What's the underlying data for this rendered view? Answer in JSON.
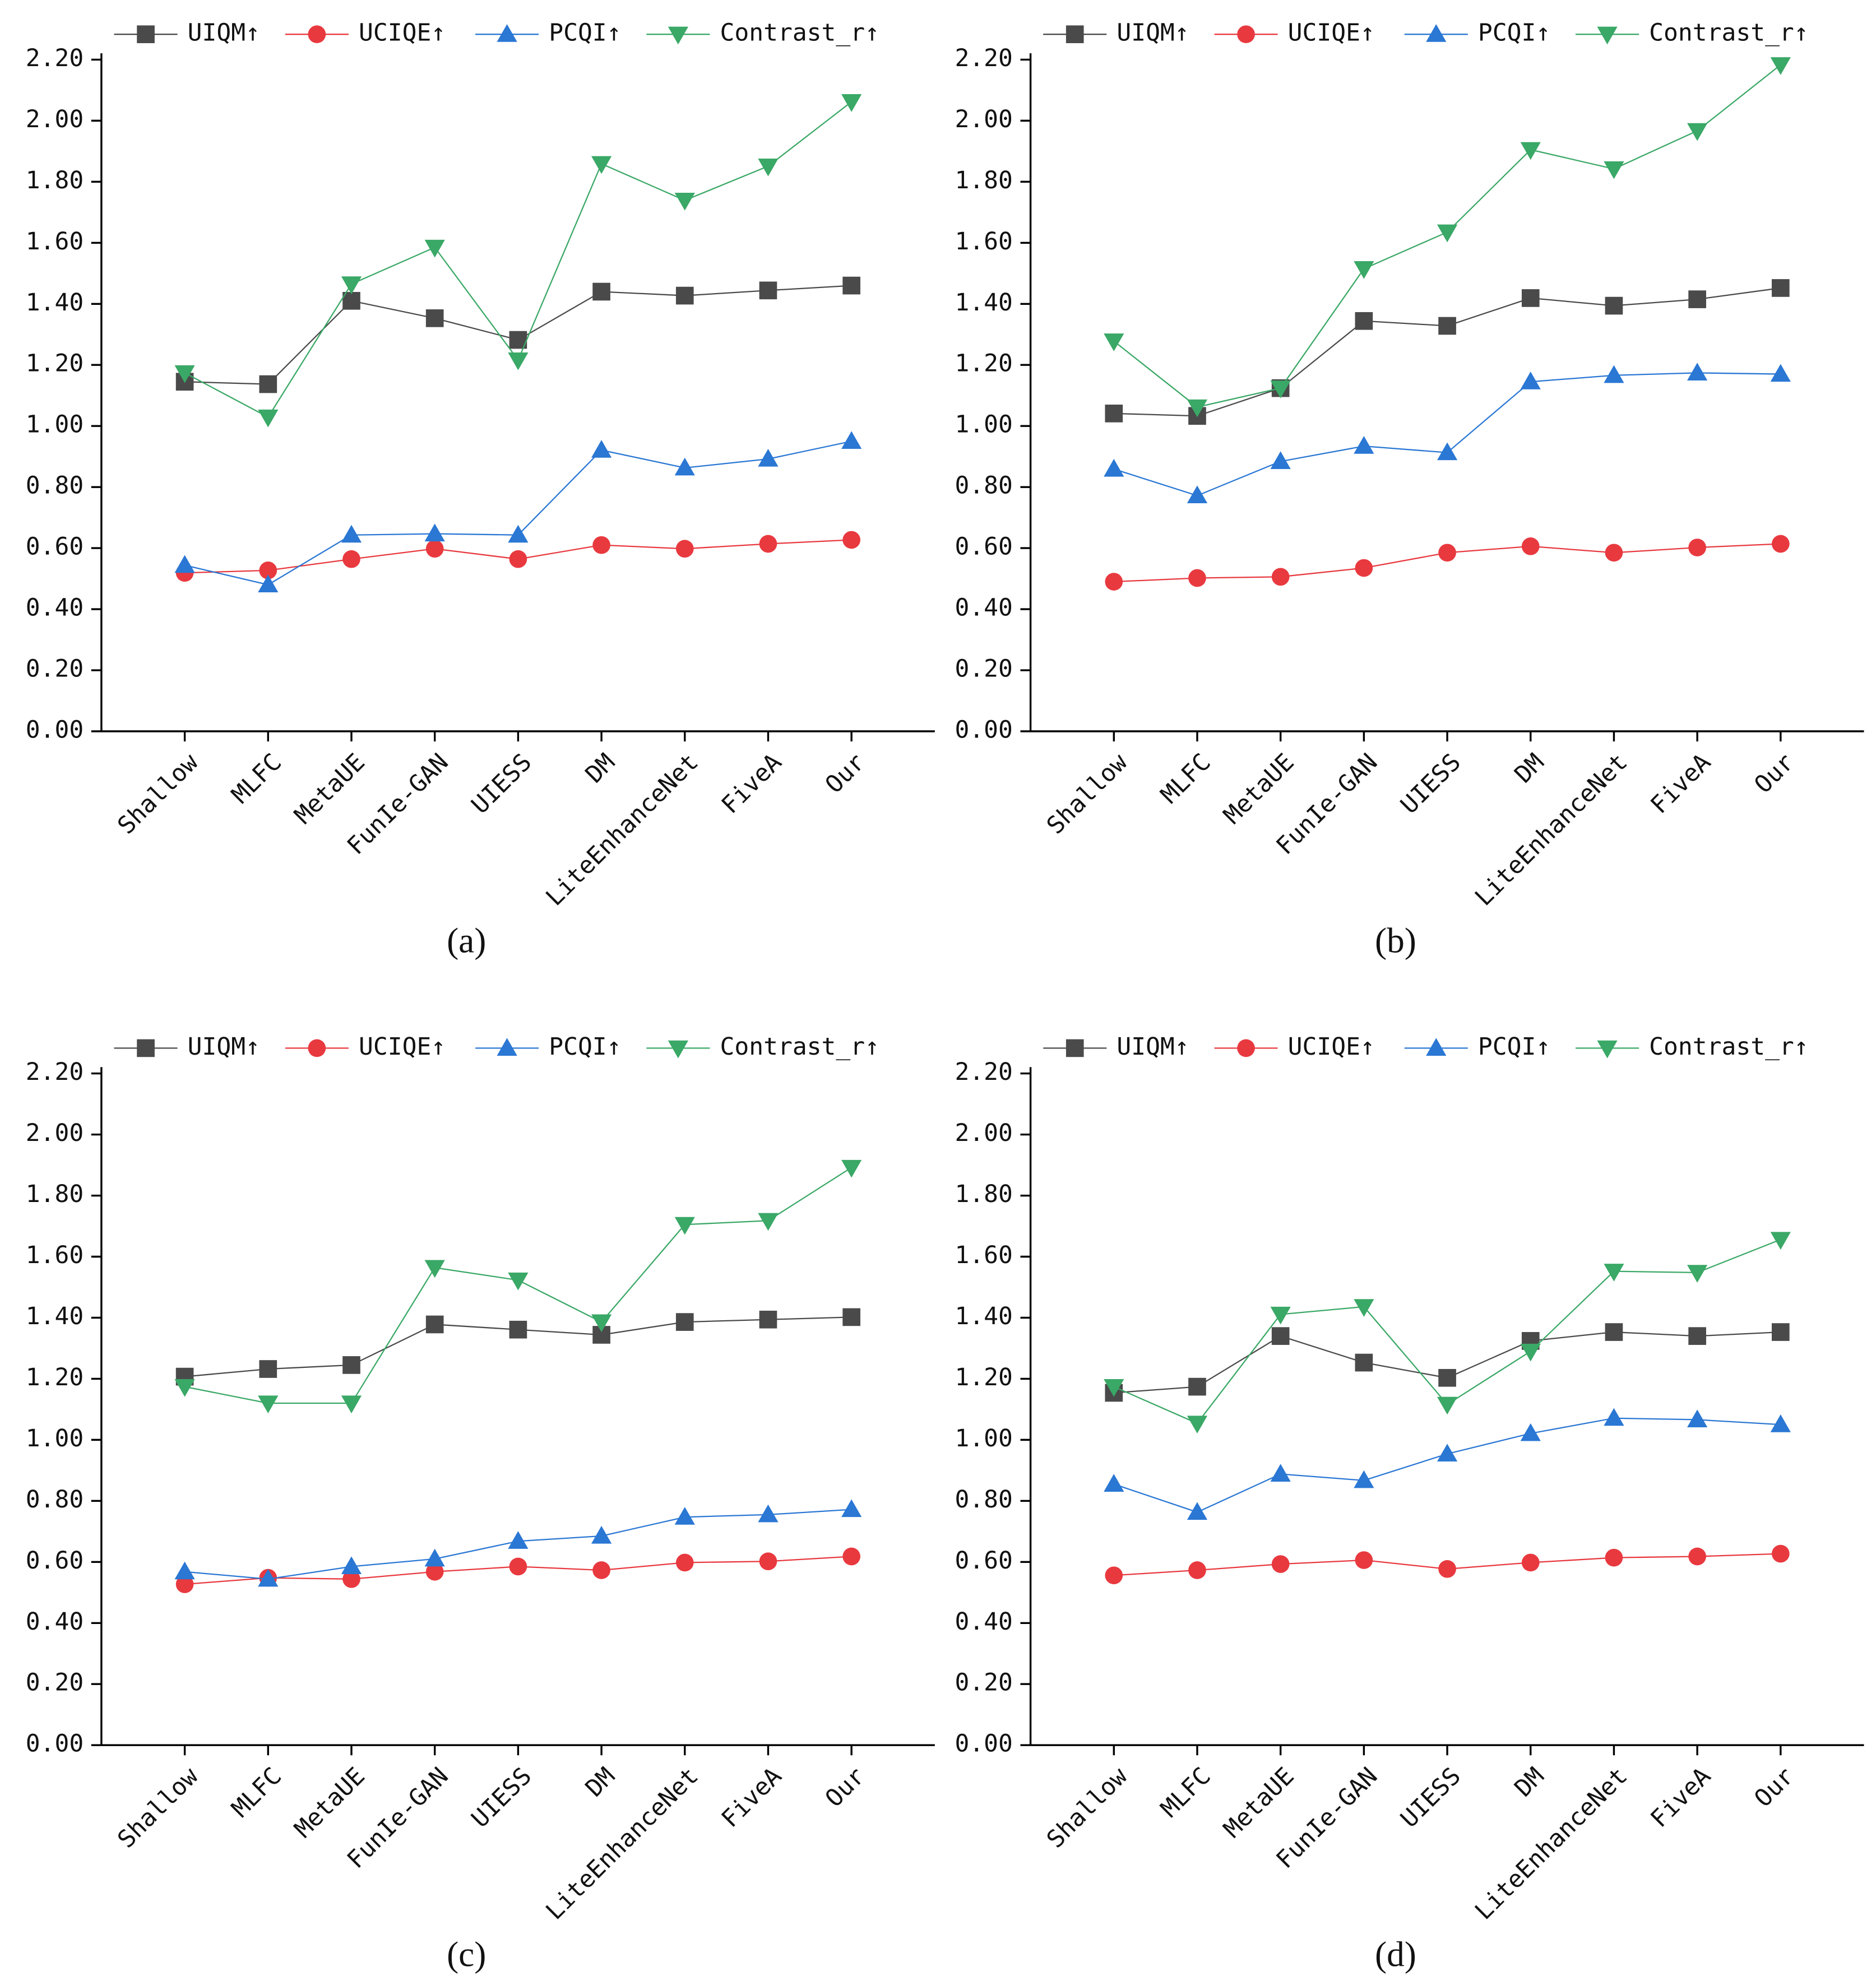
{
  "chart_data": [
    {
      "type": "line",
      "label": "(a)",
      "legend": "top",
      "categories": [
        "Shallow",
        "MLFC",
        "MetaUE",
        "FunIe-GAN",
        "UIESS",
        "DM",
        "LiteEnhanceNet",
        "FiveA",
        "Our"
      ],
      "ylim": [
        0,
        2.2
      ],
      "yticks": [
        {
          "value": 0,
          "label": "0.00"
        },
        {
          "value": 0.2,
          "label": "0.20"
        },
        {
          "value": 0.4,
          "label": "0.40"
        },
        {
          "value": 0.6,
          "label": "0.60"
        },
        {
          "value": 0.8,
          "label": "0.80"
        },
        {
          "value": 1,
          "label": "1.00"
        },
        {
          "value": 1.2,
          "label": "1.20"
        },
        {
          "value": 1.4,
          "label": "1.40"
        },
        {
          "value": 1.6,
          "label": "1.60"
        },
        {
          "value": 1.8,
          "label": "1.80"
        },
        {
          "value": 2,
          "label": "2.00"
        },
        {
          "value": 2.2,
          "label": "2.20"
        }
      ],
      "series": [
        {
          "name": "UIQM↑",
          "color": "#4a4a4a",
          "marker": "square",
          "values": [
            1.145,
            1.137,
            1.41,
            1.353,
            1.282,
            1.44,
            1.427,
            1.444,
            1.46
          ]
        },
        {
          "name": "UCIQE↑",
          "color": "#e8393f",
          "marker": "circle",
          "values": [
            0.519,
            0.527,
            0.564,
            0.598,
            0.564,
            0.61,
            0.598,
            0.614,
            0.627
          ]
        },
        {
          "name": "PCQI↑",
          "color": "#2a77d4",
          "marker": "triangle-up",
          "values": [
            0.544,
            0.48,
            0.643,
            0.647,
            0.643,
            0.921,
            0.863,
            0.892,
            0.95
          ]
        },
        {
          "name": "Contrast_r↑",
          "color": "#3aa866",
          "marker": "triangle-down",
          "values": [
            1.174,
            1.029,
            1.465,
            1.585,
            1.216,
            1.859,
            1.739,
            1.851,
            2.062
          ]
        }
      ]
    },
    {
      "type": "line",
      "label": "(b)",
      "legend": "top",
      "categories": [
        "Shallow",
        "MLFC",
        "MetaUE",
        "FunIe-GAN",
        "UIESS",
        "DM",
        "LiteEnhanceNet",
        "FiveA",
        "Our"
      ],
      "ylim": [
        0,
        2.2
      ],
      "yticks": [
        {
          "value": 0,
          "label": "0.00"
        },
        {
          "value": 0.2,
          "label": "0.20"
        },
        {
          "value": 0.4,
          "label": "0.40"
        },
        {
          "value": 0.6,
          "label": "0.60"
        },
        {
          "value": 0.8,
          "label": "0.80"
        },
        {
          "value": 1,
          "label": "1.00"
        },
        {
          "value": 1.2,
          "label": "1.20"
        },
        {
          "value": 1.4,
          "label": "1.40"
        },
        {
          "value": 1.6,
          "label": "1.60"
        },
        {
          "value": 1.8,
          "label": "1.80"
        },
        {
          "value": 2,
          "label": "2.00"
        },
        {
          "value": 2.2,
          "label": "2.20"
        }
      ],
      "series": [
        {
          "name": "UIQM↑",
          "color": "#4a4a4a",
          "marker": "square",
          "values": [
            1.041,
            1.033,
            1.124,
            1.344,
            1.328,
            1.419,
            1.394,
            1.415,
            1.452
          ]
        },
        {
          "name": "UCIQE↑",
          "color": "#e8393f",
          "marker": "circle",
          "values": [
            0.49,
            0.502,
            0.506,
            0.535,
            0.585,
            0.606,
            0.585,
            0.602,
            0.614
          ]
        },
        {
          "name": "PCQI↑",
          "color": "#2a77d4",
          "marker": "triangle-up",
          "values": [
            0.859,
            0.772,
            0.884,
            0.934,
            0.913,
            1.145,
            1.166,
            1.174,
            1.17
          ]
        },
        {
          "name": "Contrast_r↑",
          "color": "#3aa866",
          "marker": "triangle-down",
          "values": [
            1.278,
            1.062,
            1.124,
            1.515,
            1.635,
            1.905,
            1.842,
            1.967,
            2.183
          ]
        }
      ]
    },
    {
      "type": "line",
      "label": "(c)",
      "legend": "top",
      "categories": [
        "Shallow",
        "MLFC",
        "MetaUE",
        "FunIe-GAN",
        "UIESS",
        "DM",
        "LiteEnhanceNet",
        "FiveA",
        "Our"
      ],
      "ylim": [
        0,
        2.2
      ],
      "yticks": [
        {
          "value": 0,
          "label": "0.00"
        },
        {
          "value": 0.2,
          "label": "0.20"
        },
        {
          "value": 0.4,
          "label": "0.40"
        },
        {
          "value": 0.6,
          "label": "0.60"
        },
        {
          "value": 0.8,
          "label": "0.80"
        },
        {
          "value": 1,
          "label": "1.00"
        },
        {
          "value": 1.2,
          "label": "1.20"
        },
        {
          "value": 1.4,
          "label": "1.40"
        },
        {
          "value": 1.6,
          "label": "1.60"
        },
        {
          "value": 1.8,
          "label": "1.80"
        },
        {
          "value": 2,
          "label": "2.00"
        },
        {
          "value": 2.2,
          "label": "2.20"
        }
      ],
      "series": [
        {
          "name": "UIQM↑",
          "color": "#4a4a4a",
          "marker": "square",
          "values": [
            1.207,
            1.232,
            1.245,
            1.378,
            1.361,
            1.344,
            1.386,
            1.394,
            1.402
          ]
        },
        {
          "name": "UCIQE↑",
          "color": "#e8393f",
          "marker": "circle",
          "values": [
            0.527,
            0.548,
            0.544,
            0.568,
            0.585,
            0.573,
            0.598,
            0.602,
            0.618
          ]
        },
        {
          "name": "PCQI↑",
          "color": "#2a77d4",
          "marker": "triangle-up",
          "values": [
            0.568,
            0.544,
            0.585,
            0.61,
            0.668,
            0.685,
            0.747,
            0.755,
            0.772
          ]
        },
        {
          "name": "Contrast_r↑",
          "color": "#3aa866",
          "marker": "triangle-down",
          "values": [
            1.174,
            1.12,
            1.12,
            1.564,
            1.523,
            1.386,
            1.705,
            1.718,
            1.892
          ]
        }
      ]
    },
    {
      "type": "line",
      "label": "(d)",
      "legend": "top",
      "categories": [
        "Shallow",
        "MLFC",
        "MetaUE",
        "FunIe-GAN",
        "UIESS",
        "DM",
        "LiteEnhanceNet",
        "FiveA",
        "Our"
      ],
      "ylim": [
        0,
        2.2
      ],
      "yticks": [
        {
          "value": 0,
          "label": "0.00"
        },
        {
          "value": 0.2,
          "label": "0.20"
        },
        {
          "value": 0.4,
          "label": "0.40"
        },
        {
          "value": 0.6,
          "label": "0.60"
        },
        {
          "value": 0.8,
          "label": "0.80"
        },
        {
          "value": 1,
          "label": "1.00"
        },
        {
          "value": 1.2,
          "label": "1.20"
        },
        {
          "value": 1.4,
          "label": "1.40"
        },
        {
          "value": 1.6,
          "label": "1.60"
        },
        {
          "value": 1.8,
          "label": "1.80"
        },
        {
          "value": 2,
          "label": "2.00"
        },
        {
          "value": 2.2,
          "label": "2.20"
        }
      ],
      "series": [
        {
          "name": "UIQM↑",
          "color": "#4a4a4a",
          "marker": "square",
          "values": [
            1.154,
            1.174,
            1.34,
            1.253,
            1.203,
            1.324,
            1.353,
            1.34,
            1.353
          ]
        },
        {
          "name": "UCIQE↑",
          "color": "#e8393f",
          "marker": "circle",
          "values": [
            0.556,
            0.573,
            0.593,
            0.606,
            0.577,
            0.598,
            0.614,
            0.618,
            0.627
          ]
        },
        {
          "name": "PCQI↑",
          "color": "#2a77d4",
          "marker": "triangle-up",
          "values": [
            0.855,
            0.763,
            0.888,
            0.867,
            0.954,
            1.021,
            1.071,
            1.066,
            1.05
          ]
        },
        {
          "name": "Contrast_r↑",
          "color": "#3aa866",
          "marker": "triangle-down",
          "values": [
            1.174,
            1.054,
            1.411,
            1.436,
            1.116,
            1.29,
            1.552,
            1.548,
            1.656
          ]
        }
      ]
    }
  ]
}
